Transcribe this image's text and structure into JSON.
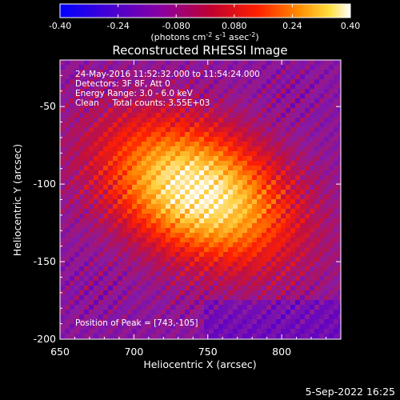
{
  "colorbar": {
    "ticks": [
      "-0.40",
      "-0.24",
      "-0.080",
      "0.080",
      "0.24",
      "0.40"
    ],
    "range": [
      -0.4,
      0.4
    ],
    "unit_prefix": "(photons cm",
    "unit_sup1": "-2",
    "unit_mid": " s",
    "unit_sup2": "-1",
    "unit_mid2": " asec",
    "unit_sup3": "-2",
    "unit_suffix": ")"
  },
  "annotations": {
    "time_range": "24-May-2016 11:52:32.000 to 11:54:24.000",
    "detectors": "Detectors: 3F 8F, Att 0",
    "energy": "Energy Range: 3.0 - 6.0 keV",
    "clean": "Clean     Total counts: 3.55E+03",
    "peak": "Position of Peak = [743,-105]"
  },
  "footer": {
    "date": "5-Sep-2022 16:25"
  },
  "chart_data": {
    "type": "heatmap",
    "title": "Reconstructed RHESSI Image",
    "xlabel": "Heliocentric X (arcsec)",
    "ylabel": "Heliocentric Y (arcsec)",
    "xlim": [
      650,
      840
    ],
    "ylim": [
      -200,
      -20
    ],
    "xticks": [
      650,
      700,
      750,
      800
    ],
    "yticks": [
      -50,
      -100,
      -150,
      -200
    ],
    "peak": [
      743,
      -105
    ],
    "colormap": [
      "#0000ff",
      "#5a00c8",
      "#8a1aa0",
      "#c01040",
      "#ff2000",
      "#ff8000",
      "#ffd040",
      "#ffffff"
    ]
  }
}
